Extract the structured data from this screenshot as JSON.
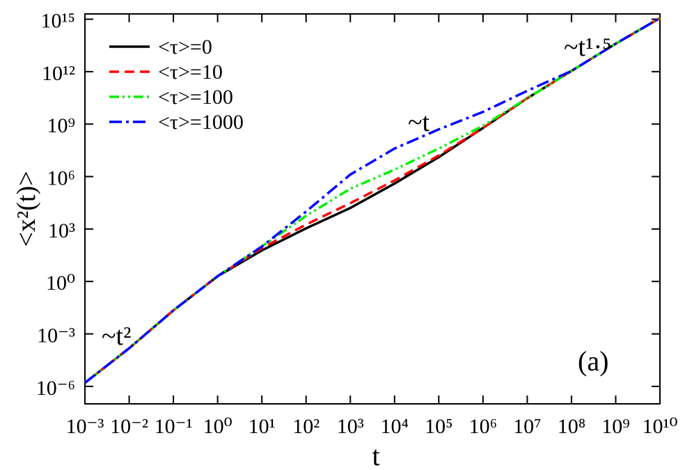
{
  "chart_data": {
    "type": "line",
    "xlabel": "t",
    "ylabel": "<x²(t)>",
    "xscale": "log",
    "yscale": "log",
    "xlim": [
      0.001,
      10000000000
    ],
    "ylim": [
      1e-07,
      2000000000000000.0
    ],
    "xticks": [
      {
        "value": 0.001,
        "label": "10⁻³"
      },
      {
        "value": 0.01,
        "label": "10⁻²"
      },
      {
        "value": 0.1,
        "label": "10⁻¹"
      },
      {
        "value": 1,
        "label": "10⁰"
      },
      {
        "value": 10,
        "label": "10¹"
      },
      {
        "value": 100,
        "label": "10²"
      },
      {
        "value": 1000,
        "label": "10³"
      },
      {
        "value": 10000,
        "label": "10⁴"
      },
      {
        "value": 100000,
        "label": "10⁵"
      },
      {
        "value": 1000000,
        "label": "10⁶"
      },
      {
        "value": 10000000,
        "label": "10⁷"
      },
      {
        "value": 100000000,
        "label": "10⁸"
      },
      {
        "value": 1000000000,
        "label": "10⁹"
      },
      {
        "value": 10000000000,
        "label": "10¹⁰"
      }
    ],
    "yticks": [
      {
        "value": 1e-06,
        "label": "10⁻⁶"
      },
      {
        "value": 0.001,
        "label": "10⁻³"
      },
      {
        "value": 1,
        "label": "10⁰"
      },
      {
        "value": 1000,
        "label": "10³"
      },
      {
        "value": 1000000,
        "label": "10⁶"
      },
      {
        "value": 1000000000,
        "label": "10⁹"
      },
      {
        "value": 1000000000000,
        "label": "10¹²"
      },
      {
        "value": 1000000000000000,
        "label": "10¹⁵"
      }
    ],
    "x": [
      0.001,
      0.01,
      0.1,
      1,
      10,
      100,
      1000,
      10000,
      100000,
      1000000,
      10000000,
      100000000,
      1000000000,
      10000000000
    ],
    "legend": "upper left",
    "series": [
      {
        "name": "<τ>=0",
        "color": "#000000",
        "linestyle": "solid",
        "values": [
          1.6e-06,
          0.00015,
          0.022,
          2,
          60,
          1100,
          16000,
          400000,
          13000000,
          600000000,
          30000000000,
          1100000000000,
          40000000000000,
          1150000000000000
        ]
      },
      {
        "name": "<τ>=10",
        "color": "#ff0000",
        "linestyle": "dashed",
        "values": [
          1.6e-06,
          0.00015,
          0.022,
          2,
          80,
          1800,
          30000,
          600000,
          16000000,
          600000000,
          30000000000,
          1100000000000,
          40000000000000,
          1150000000000000
        ]
      },
      {
        "name": "<τ>=100",
        "color": "#00ee00",
        "linestyle": "dashdotdot",
        "values": [
          1.6e-06,
          0.00015,
          0.022,
          2,
          100,
          5600,
          200000,
          2500000,
          40000000,
          800000000,
          30000000000,
          1100000000000,
          40000000000000,
          1150000000000000
        ]
      },
      {
        "name": "<τ>=1000",
        "color": "#0000ff",
        "linestyle": "dashdot",
        "values": [
          1.6e-06,
          0.00015,
          0.022,
          2,
          100,
          10000,
          1300000,
          40000000,
          500000000,
          5000000000,
          80000000000,
          1100000000000,
          40000000000000,
          1150000000000000
        ]
      }
    ],
    "annotations": [
      "~t²",
      "~t",
      "~t¹·⁵",
      "(a)"
    ]
  }
}
